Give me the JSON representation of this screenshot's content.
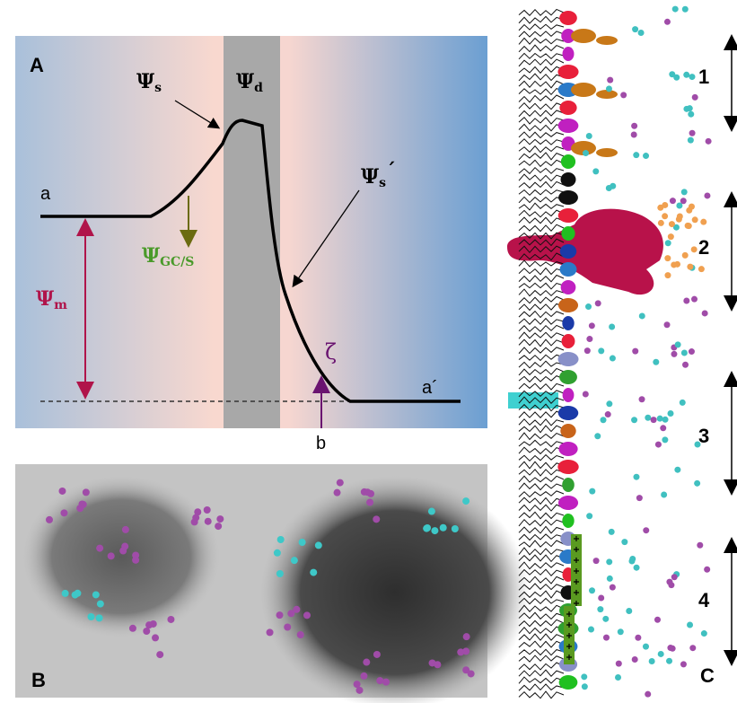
{
  "panel_a": {
    "label": "A",
    "psi_s": {
      "symbol": "Ψ",
      "sub": "s"
    },
    "psi_d": {
      "symbol": "Ψ",
      "sub": "d"
    },
    "point_a": "a",
    "psi_gcs": {
      "symbol": "Ψ",
      "sub": "GC/S"
    },
    "psi_m": {
      "symbol": "Ψ",
      "sub": "m"
    },
    "psi_s_prime": {
      "symbol": "Ψ",
      "sub": "s",
      "prime": "´"
    },
    "zeta": "ζ",
    "point_a_prime": "a´",
    "point_b": "b"
  },
  "panel_b": {
    "label": "B"
  },
  "panel_c": {
    "label": "C",
    "regions": [
      "1",
      "2",
      "3",
      "4"
    ]
  }
}
